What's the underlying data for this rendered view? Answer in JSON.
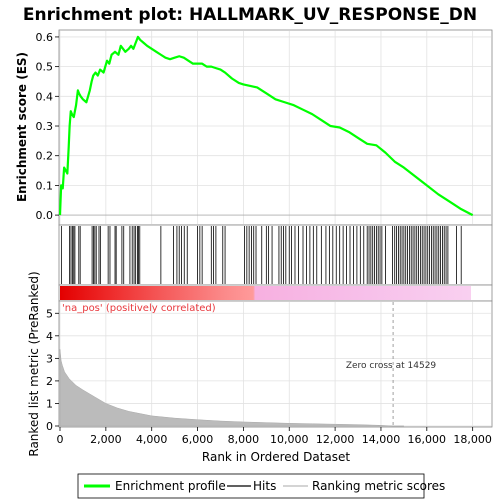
{
  "chart_data": {
    "type": "line",
    "title": "Enrichment plot: HALLMARK_UV_RESPONSE_DN",
    "xlabel": "Rank in Ordered Dataset",
    "ylabel_top": "Enrichment score (ES)",
    "ylabel_bottom": "Ranked list metric (PreRanked)",
    "xlim": [
      0,
      18800
    ],
    "es_ylim": [
      -0.03,
      0.62
    ],
    "metric_ylim": [
      0,
      5.5
    ],
    "x_ticks": [
      "0",
      "2,000",
      "4,000",
      "6,000",
      "8,000",
      "10,000",
      "12,000",
      "14,000",
      "16,000",
      "18,000"
    ],
    "x_tick_values": [
      0,
      2000,
      4000,
      6000,
      8000,
      10000,
      12000,
      14000,
      16000,
      18000
    ],
    "es_ticks": [
      "0.0",
      "0.1",
      "0.2",
      "0.3",
      "0.4",
      "0.5",
      "0.6"
    ],
    "es_tick_values": [
      0,
      0.1,
      0.2,
      0.3,
      0.4,
      0.5,
      0.6
    ],
    "metric_ticks": [
      "0",
      "1",
      "2",
      "3",
      "4",
      "5"
    ],
    "metric_tick_values": [
      0,
      1,
      2,
      3,
      4,
      5
    ],
    "grid": true,
    "legend_position": "bottom",
    "legend": [
      {
        "label": "Enrichment profile",
        "color": "#00ff00"
      },
      {
        "label": "Hits",
        "color": "#000000"
      },
      {
        "label": "Ranking metric scores",
        "color": "#bbbbbb"
      }
    ],
    "annotations": {
      "positive_label": "'na_pos' (positively correlated)",
      "zero_cross": "Zero cross at 14529",
      "zero_cross_rank": 14529
    },
    "series": [
      {
        "name": "Enrichment profile",
        "color": "#00ff00",
        "x": [
          0,
          50,
          120,
          180,
          250,
          320,
          380,
          420,
          470,
          520,
          600,
          700,
          780,
          830,
          900,
          1000,
          1150,
          1300,
          1380,
          1450,
          1550,
          1650,
          1750,
          1900,
          2050,
          2150,
          2250,
          2400,
          2550,
          2650,
          2750,
          2850,
          3000,
          3100,
          3200,
          3300,
          3400,
          3500,
          3650,
          3800,
          4000,
          4200,
          4400,
          4600,
          4800,
          5000,
          5200,
          5400,
          5600,
          5800,
          6000,
          6200,
          6400,
          6600,
          6800,
          7000,
          7200,
          7500,
          7800,
          8000,
          8300,
          8600,
          9000,
          9400,
          9800,
          10200,
          10600,
          11000,
          11400,
          11800,
          12200,
          12600,
          13000,
          13400,
          13800,
          14200,
          14600,
          15000,
          15500,
          16000,
          16500,
          17000,
          17500,
          18000
        ],
        "y": [
          0.0,
          0.1,
          0.09,
          0.16,
          0.15,
          0.14,
          0.23,
          0.3,
          0.35,
          0.34,
          0.33,
          0.37,
          0.42,
          0.41,
          0.4,
          0.39,
          0.38,
          0.42,
          0.45,
          0.47,
          0.48,
          0.47,
          0.49,
          0.48,
          0.52,
          0.51,
          0.54,
          0.55,
          0.54,
          0.57,
          0.56,
          0.55,
          0.56,
          0.57,
          0.56,
          0.58,
          0.6,
          0.59,
          0.58,
          0.57,
          0.56,
          0.55,
          0.54,
          0.53,
          0.525,
          0.53,
          0.535,
          0.53,
          0.52,
          0.51,
          0.51,
          0.51,
          0.5,
          0.5,
          0.495,
          0.49,
          0.48,
          0.46,
          0.445,
          0.44,
          0.435,
          0.43,
          0.41,
          0.39,
          0.38,
          0.37,
          0.355,
          0.34,
          0.32,
          0.3,
          0.295,
          0.28,
          0.26,
          0.24,
          0.235,
          0.21,
          0.18,
          0.16,
          0.13,
          0.1,
          0.07,
          0.045,
          0.02,
          0.0
        ]
      },
      {
        "name": "Hits",
        "color": "#000000",
        "x": [
          60,
          420,
          480,
          540,
          600,
          650,
          820,
          880,
          1400,
          1460,
          1520,
          1580,
          1700,
          1760,
          2100,
          2180,
          2400,
          2450,
          2700,
          2780,
          3050,
          3150,
          3230,
          3300,
          3380,
          3420,
          3480,
          4400,
          4950,
          5100,
          5200,
          5300,
          5420,
          5550,
          6000,
          6100,
          6200,
          6600,
          6700,
          6800,
          7100,
          7200,
          8050,
          8150,
          8250,
          8350,
          8450,
          8550,
          8800,
          9000,
          9100,
          9250,
          9550,
          9650,
          9750,
          9850,
          10000,
          10100,
          10250,
          10400,
          10600,
          10750,
          10900,
          11050,
          11200,
          11400,
          11600,
          11750,
          11900,
          12050,
          12200,
          12350,
          12500,
          12650,
          12800,
          12950,
          13100,
          13250,
          13400,
          13480,
          13560,
          13640,
          13720,
          13800,
          13880,
          13960,
          14040,
          14200,
          14500,
          14600,
          14680,
          14760,
          14840,
          14920,
          15000,
          15080,
          15160,
          15240,
          15320,
          15400,
          15480,
          15560,
          15640,
          15720,
          15800,
          15880,
          15960,
          16040,
          16120,
          16200,
          16280,
          16360,
          16440,
          16520,
          16600,
          16680,
          16760,
          16840,
          16920,
          17300,
          17500
        ]
      },
      {
        "name": "Ranking metric scores",
        "color": "#bbbbbb",
        "x": [
          0,
          50,
          100,
          200,
          400,
          700,
          1000,
          1500,
          2000,
          2500,
          3000,
          4000,
          5000,
          6000,
          7000,
          8000,
          9000,
          10000,
          11000,
          12000,
          13000,
          14000,
          14529,
          15000
        ],
        "y": [
          3.4,
          2.9,
          2.7,
          2.4,
          2.1,
          1.8,
          1.6,
          1.3,
          1.0,
          0.8,
          0.65,
          0.45,
          0.35,
          0.28,
          0.22,
          0.18,
          0.15,
          0.12,
          0.1,
          0.08,
          0.06,
          0.03,
          0.0,
          0.0
        ]
      }
    ]
  }
}
